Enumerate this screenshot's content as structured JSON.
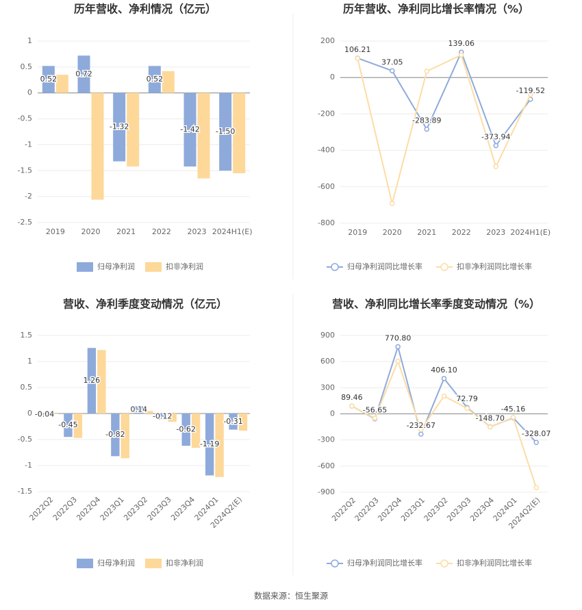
{
  "chart_data": [
    {
      "type": "bar",
      "title": "历年营收、净利情况（亿元）",
      "categories": [
        "2019",
        "2020",
        "2021",
        "2022",
        "2023",
        "2024H1(E)"
      ],
      "series": [
        {
          "name": "归母净利润",
          "color": "#8eaadb",
          "values": [
            0.52,
            0.72,
            -1.32,
            0.52,
            -1.42,
            -1.5
          ],
          "value_labels": [
            "0.52",
            "0.72",
            "-1.32",
            "0.52",
            "-1.42",
            "-1.50"
          ],
          "labels": true
        },
        {
          "name": "扣非净利润",
          "color": "#fdd899",
          "values": [
            0.35,
            -2.06,
            -1.42,
            0.42,
            -1.65,
            -1.55
          ]
        }
      ],
      "ylim": [
        -2.5,
        1
      ],
      "yticks": [
        1,
        0.5,
        0,
        -0.5,
        -1,
        -1.5,
        -2,
        -2.5
      ],
      "grid": true
    },
    {
      "type": "line",
      "title": "历年营收、净利同比增长率情况（%）",
      "categories": [
        "2019",
        "2020",
        "2021",
        "2022",
        "2023",
        "2024H1(E)"
      ],
      "series": [
        {
          "name": "归母净利润同比增长率",
          "color": "#8eaadb",
          "values": [
            106.21,
            37.05,
            -283.89,
            139.06,
            -373.94,
            -119.52
          ],
          "labels": true
        },
        {
          "name": "扣非净利润同比增长率",
          "color": "#fddca4",
          "values": [
            105,
            -692,
            34,
            124,
            -489,
            -94
          ]
        }
      ],
      "ylim": [
        -800,
        200
      ],
      "yticks": [
        200,
        0,
        -200,
        -400,
        -600,
        -800
      ],
      "grid": true
    },
    {
      "type": "bar",
      "title": "营收、净利季度变动情况（亿元）",
      "categories": [
        "2022Q2",
        "2022Q3",
        "2022Q4",
        "2023Q1",
        "2023Q2",
        "2023Q3",
        "2023Q4",
        "2024Q1",
        "2024Q2(E)"
      ],
      "series": [
        {
          "name": "归母净利润",
          "color": "#8eaadb",
          "values": [
            -0.04,
            -0.45,
            1.26,
            -0.82,
            0.14,
            -0.12,
            -0.62,
            -1.19,
            -0.31
          ],
          "labels": true
        },
        {
          "name": "扣非净利润",
          "color": "#fdd899",
          "values": [
            -0.01,
            -0.47,
            1.22,
            -0.86,
            0.05,
            -0.16,
            -0.66,
            -1.22,
            -0.33
          ]
        }
      ],
      "ylim": [
        -1.5,
        1.5
      ],
      "yticks": [
        1.5,
        1,
        0.5,
        0,
        -0.5,
        -1,
        -1.5
      ],
      "grid": true,
      "rotate_x_labels": true
    },
    {
      "type": "line",
      "title": "营收、净利同比增长率季度变动情况（%）",
      "categories": [
        "2022Q2",
        "2022Q3",
        "2022Q4",
        "2023Q1",
        "2023Q2",
        "2023Q3",
        "2023Q4",
        "2024Q1",
        "2024Q2(E)"
      ],
      "series": [
        {
          "name": "归母净利润同比增长率",
          "color": "#8eaadb",
          "values": [
            89.46,
            -56.65,
            770.8,
            -232.67,
            406.1,
            72.79,
            -148.7,
            -45.16,
            -328.07
          ],
          "value_labels": [
            "89.46",
            "-56.65",
            "770.80",
            "-232.67",
            "406.10",
            "72.79",
            "-148.70",
            "-45.16",
            "-328.07"
          ],
          "labels": true
        },
        {
          "name": "扣非净利润同比增长率",
          "color": "#fddca4",
          "values": [
            89,
            -50,
            605,
            -180,
            204,
            63,
            -150,
            -40,
            -848
          ]
        }
      ],
      "ylim": [
        -900,
        900
      ],
      "yticks": [
        900,
        600,
        300,
        0,
        -300,
        -600,
        -900
      ],
      "grid": true,
      "rotate_x_labels": true
    }
  ],
  "source": "数据来源：恒生聚源"
}
